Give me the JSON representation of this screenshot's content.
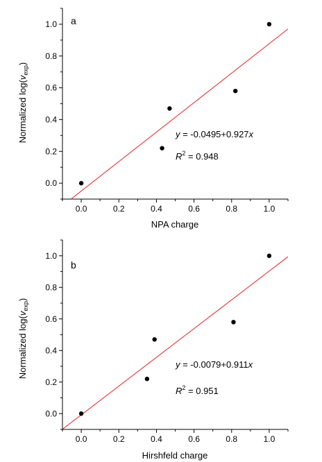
{
  "chart_data": [
    {
      "type": "scatter",
      "panel_label": "a",
      "xlabel": "NPA charge",
      "ylabel_prefix": "Normalized log(",
      "ylabel_var": "v",
      "ylabel_sub": "exp",
      "ylabel_suffix": ")",
      "xlim": [
        -0.1,
        1.1
      ],
      "ylim": [
        -0.1,
        1.1
      ],
      "xticks": [
        "0.0",
        "0.2",
        "0.4",
        "0.6",
        "0.8",
        "1.0"
      ],
      "yticks": [
        "0.0",
        "0.2",
        "0.4",
        "0.6",
        "0.8",
        "1.0"
      ],
      "points": [
        {
          "x": 0.0,
          "y": 0.0
        },
        {
          "x": 0.43,
          "y": 0.22
        },
        {
          "x": 0.47,
          "y": 0.47
        },
        {
          "x": 0.82,
          "y": 0.58
        },
        {
          "x": 1.0,
          "y": 1.0
        }
      ],
      "fit": {
        "intercept": -0.0495,
        "slope": 0.927
      },
      "equation": {
        "y_var": "y",
        "rest": " = -0.0495+0.927",
        "x_var": "x"
      },
      "r2": {
        "r": "R",
        "sup": "2",
        "rest": " = 0.948"
      },
      "grid": false,
      "line_color": "#e02020",
      "point_color": "#000000"
    },
    {
      "type": "scatter",
      "panel_label": "b",
      "xlabel": "Hirshfeld charge",
      "ylabel_prefix": "Normalized log(",
      "ylabel_var": "v",
      "ylabel_sub": "exp",
      "ylabel_suffix": ")",
      "xlim": [
        -0.1,
        1.1
      ],
      "ylim": [
        -0.1,
        1.1
      ],
      "xticks": [
        "0.0",
        "0.2",
        "0.4",
        "0.6",
        "0.8",
        "1.0"
      ],
      "yticks": [
        "0.0",
        "0.2",
        "0.4",
        "0.6",
        "0.8",
        "1.0"
      ],
      "points": [
        {
          "x": 0.0,
          "y": 0.0
        },
        {
          "x": 0.35,
          "y": 0.22
        },
        {
          "x": 0.39,
          "y": 0.47
        },
        {
          "x": 0.81,
          "y": 0.58
        },
        {
          "x": 1.0,
          "y": 1.0
        }
      ],
      "fit": {
        "intercept": -0.0079,
        "slope": 0.911
      },
      "equation": {
        "y_var": "y",
        "rest": " = -0.0079+0.911",
        "x_var": "x"
      },
      "r2": {
        "r": "R",
        "sup": "2",
        "rest": " = 0.951"
      },
      "grid": false,
      "line_color": "#e02020",
      "point_color": "#000000"
    }
  ]
}
